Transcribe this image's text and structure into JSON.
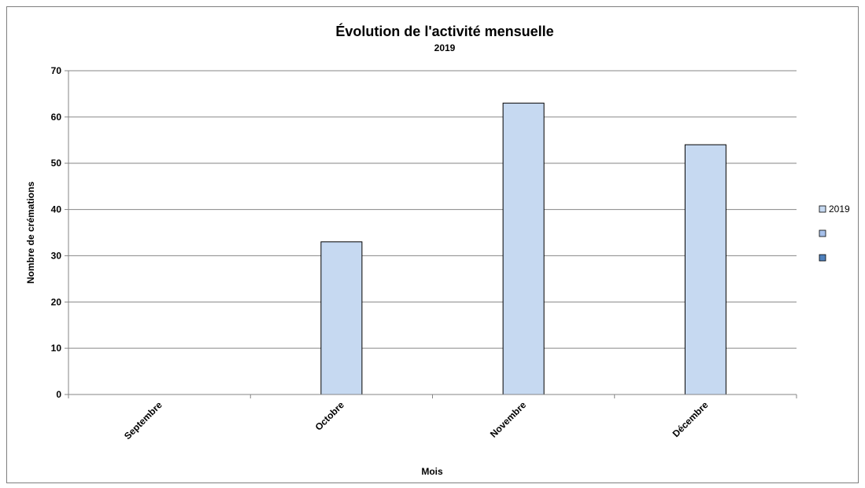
{
  "chart_data": {
    "type": "bar",
    "title": "Évolution de l'activité mensuelle",
    "subtitle": "2019",
    "xlabel": "Mois",
    "ylabel": "Nombre de crémations",
    "categories": [
      "Septembre",
      "Octobre",
      "Novembre",
      "Décembre"
    ],
    "series": [
      {
        "name": "2019",
        "values": [
          0,
          33,
          63,
          54
        ],
        "color": "#c6d9f1"
      }
    ],
    "legend": {
      "placement": "right",
      "entries": [
        {
          "label": "2019",
          "color": "#c6d9f1"
        },
        {
          "label": "",
          "color": "#a6c0ea"
        },
        {
          "label": "",
          "color": "#4f81bd"
        }
      ]
    },
    "ylim": [
      0,
      70
    ],
    "yticks": [
      0,
      10,
      20,
      30,
      40,
      50,
      60,
      70
    ],
    "grid": true
  }
}
